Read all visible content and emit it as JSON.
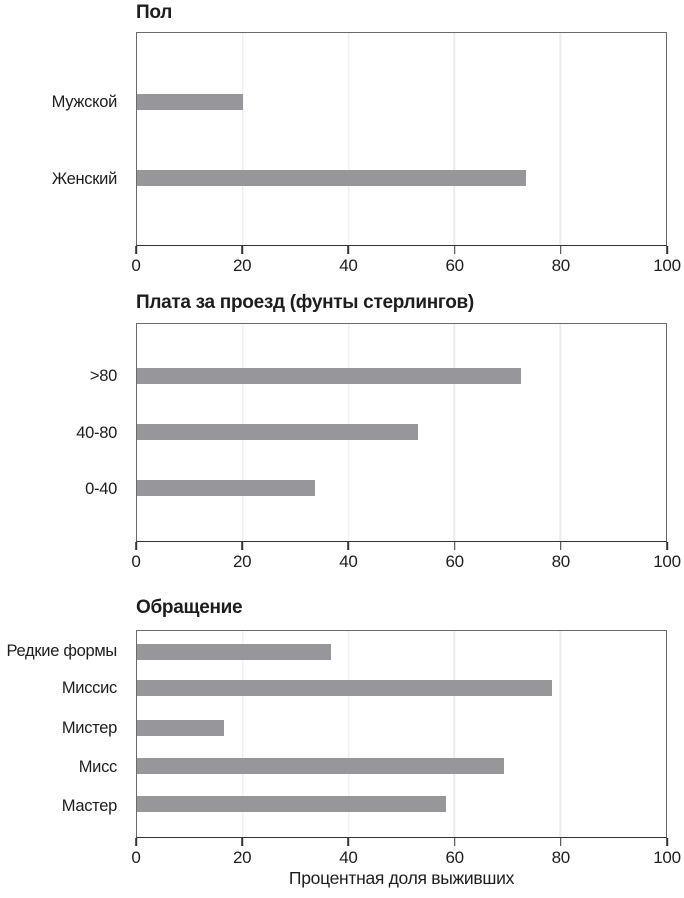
{
  "figure": {
    "xlabel": "Процентная доля выживших",
    "xlim": [
      0,
      100
    ],
    "xticks": [
      0,
      20,
      40,
      60,
      80,
      100
    ]
  },
  "chart_data": [
    {
      "type": "bar",
      "orientation": "horizontal",
      "title": "Пол",
      "categories": [
        "Мужской",
        "Женский"
      ],
      "values": [
        20.1,
        73.6
      ],
      "xlim": [
        0,
        100
      ],
      "xticks": [
        0,
        20,
        40,
        60,
        80,
        100
      ],
      "grid": "vertical-gridlines-at-ticks",
      "legend": "none"
    },
    {
      "type": "bar",
      "orientation": "horizontal",
      "title": "Плата за проезд (фунты стерлингов)",
      "categories": [
        ">80",
        "40-80",
        "0-40"
      ],
      "values": [
        72.6,
        53.2,
        33.6
      ],
      "xlim": [
        0,
        100
      ],
      "xticks": [
        0,
        20,
        40,
        60,
        80,
        100
      ],
      "grid": "vertical-gridlines-at-ticks",
      "legend": "none"
    },
    {
      "type": "bar",
      "orientation": "horizontal",
      "title": "Обращение",
      "categories": [
        "Редкие формы",
        "Миссис",
        "Мистер",
        "Мисс",
        "Мастер"
      ],
      "values": [
        36.7,
        78.5,
        16.5,
        69.4,
        58.5
      ],
      "xlabel": "Процентная доля выживших",
      "xlim": [
        0,
        100
      ],
      "xticks": [
        0,
        20,
        40,
        60,
        80,
        100
      ],
      "grid": "vertical-gridlines-at-ticks",
      "legend": "none"
    }
  ],
  "colors": {
    "bar": "#97979b",
    "frame": "#6a6a6a",
    "axis": "#333333",
    "gridline": "#ebebeb",
    "text": "#1d1d1d",
    "background": "#ffffff"
  }
}
